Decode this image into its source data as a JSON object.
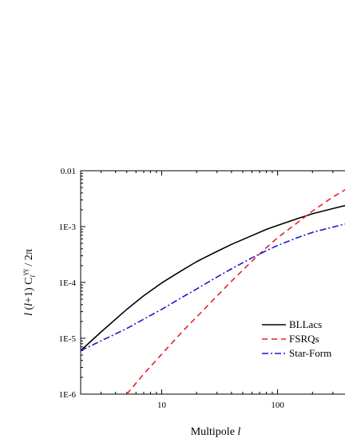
{
  "chart_data": {
    "type": "line",
    "xscale": "log",
    "yscale": "log",
    "xlim": [
      2,
      440
    ],
    "ylim": [
      1e-06,
      0.01
    ],
    "xticks": [
      {
        "value": 10,
        "label": "10"
      },
      {
        "value": 100,
        "label": "100"
      }
    ],
    "yticks": [
      {
        "value": 0.01,
        "label": "0.01"
      },
      {
        "value": 0.001,
        "label": "1E-3"
      },
      {
        "value": 0.0001,
        "label": "1E-4"
      },
      {
        "value": 1e-05,
        "label": "1E-5"
      },
      {
        "value": 1e-06,
        "label": "1E-6"
      }
    ],
    "xlabel": "Multipole l",
    "ylabel": "l (l+1) Cl γγ / 2π",
    "grid": false,
    "legend_position": "lower-right",
    "series": [
      {
        "name": "BLLacs",
        "color": "#000000",
        "dash": "solid",
        "x": [
          2,
          3,
          5,
          7,
          10,
          15,
          20,
          30,
          40,
          60,
          80,
          100,
          150,
          200,
          300,
          440
        ],
        "y": [
          6e-06,
          1.3e-05,
          3.3e-05,
          5.8e-05,
          9.8e-05,
          0.000165,
          0.000235,
          0.00036,
          0.00048,
          0.00069,
          0.00089,
          0.00105,
          0.0014,
          0.0017,
          0.0021,
          0.00255
        ]
      },
      {
        "name": "FSRQs",
        "color": "#e8202a",
        "dash": "dashed",
        "x": [
          5,
          7,
          10,
          15,
          20,
          30,
          40,
          60,
          80,
          100,
          150,
          200,
          300,
          440
        ],
        "y": [
          1e-06,
          2.3e-06,
          5.2e-06,
          1.3e-05,
          2.4e-05,
          5.7e-05,
          0.000105,
          0.00024,
          0.00042,
          0.00063,
          0.0012,
          0.0019,
          0.0034,
          0.0054
        ]
      },
      {
        "name": "Star-Form",
        "color": "#1a1acc",
        "dash": "dash-dot",
        "x": [
          2,
          3,
          5,
          7,
          10,
          15,
          20,
          30,
          40,
          60,
          80,
          100,
          150,
          200,
          300,
          440
        ],
        "y": [
          6e-06,
          9e-06,
          1.5e-05,
          2.2e-05,
          3.3e-05,
          5.4e-05,
          7.6e-05,
          0.000125,
          0.000175,
          0.000275,
          0.00037,
          0.00046,
          0.00064,
          0.00079,
          0.00098,
          0.0012
        ]
      }
    ]
  }
}
